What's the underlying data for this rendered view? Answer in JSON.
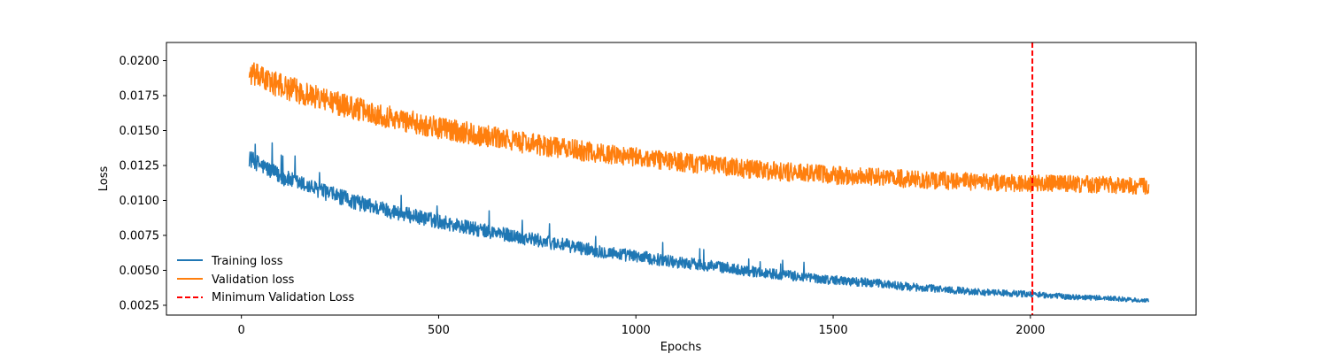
{
  "chart_data": {
    "type": "line",
    "title": "",
    "xlabel": "Epochs",
    "ylabel": "Loss",
    "xlim": [
      -190,
      2420
    ],
    "ylim": [
      0.0018,
      0.0213
    ],
    "xticks": [
      0,
      500,
      1000,
      1500,
      2000
    ],
    "yticks": [
      0.0025,
      0.005,
      0.0075,
      0.01,
      0.0125,
      0.015,
      0.0175,
      0.02
    ],
    "ytick_labels": [
      "0.0025",
      "0.0050",
      "0.0075",
      "0.0100",
      "0.0125",
      "0.0150",
      "0.0175",
      "0.0200"
    ],
    "grid": false,
    "legend_position": "lower-left",
    "x_start": 20,
    "x_end": 2300,
    "series": [
      {
        "name": "Training loss",
        "color": "#1f77b4",
        "style": "solid",
        "x": [
          20,
          100,
          200,
          300,
          400,
          500,
          600,
          700,
          800,
          900,
          1000,
          1100,
          1200,
          1300,
          1400,
          1500,
          1600,
          1700,
          1800,
          1900,
          2000,
          2100,
          2200,
          2300
        ],
        "y": [
          0.013,
          0.0117,
          0.0107,
          0.0098,
          0.0091,
          0.0085,
          0.0079,
          0.0074,
          0.0069,
          0.0064,
          0.006,
          0.0056,
          0.0053,
          0.0049,
          0.0046,
          0.0043,
          0.0041,
          0.0038,
          0.0036,
          0.0034,
          0.0033,
          0.0031,
          0.003,
          0.0028
        ],
        "noise": [
          0.0006,
          0.00045,
          0.00015
        ]
      },
      {
        "name": "Validation loss",
        "color": "#ff7f0e",
        "style": "solid",
        "x": [
          20,
          100,
          200,
          300,
          400,
          500,
          600,
          700,
          800,
          900,
          1000,
          1100,
          1200,
          1300,
          1400,
          1500,
          1600,
          1700,
          1800,
          1900,
          2000,
          2100,
          2200,
          2300
        ],
        "y": [
          0.0191,
          0.0182,
          0.0173,
          0.0165,
          0.0158,
          0.0152,
          0.0147,
          0.0142,
          0.0138,
          0.0134,
          0.0131,
          0.0128,
          0.0125,
          0.0122,
          0.012,
          0.0118,
          0.0117,
          0.0115,
          0.0114,
          0.0113,
          0.0112,
          0.0112,
          0.0111,
          0.011
        ],
        "noise": [
          0.0009,
          0.0007,
          0.0006
        ]
      }
    ],
    "vline": {
      "name": "Minimum Validation Loss",
      "x": 2005,
      "color": "#ff0000",
      "style": "dashed"
    }
  }
}
